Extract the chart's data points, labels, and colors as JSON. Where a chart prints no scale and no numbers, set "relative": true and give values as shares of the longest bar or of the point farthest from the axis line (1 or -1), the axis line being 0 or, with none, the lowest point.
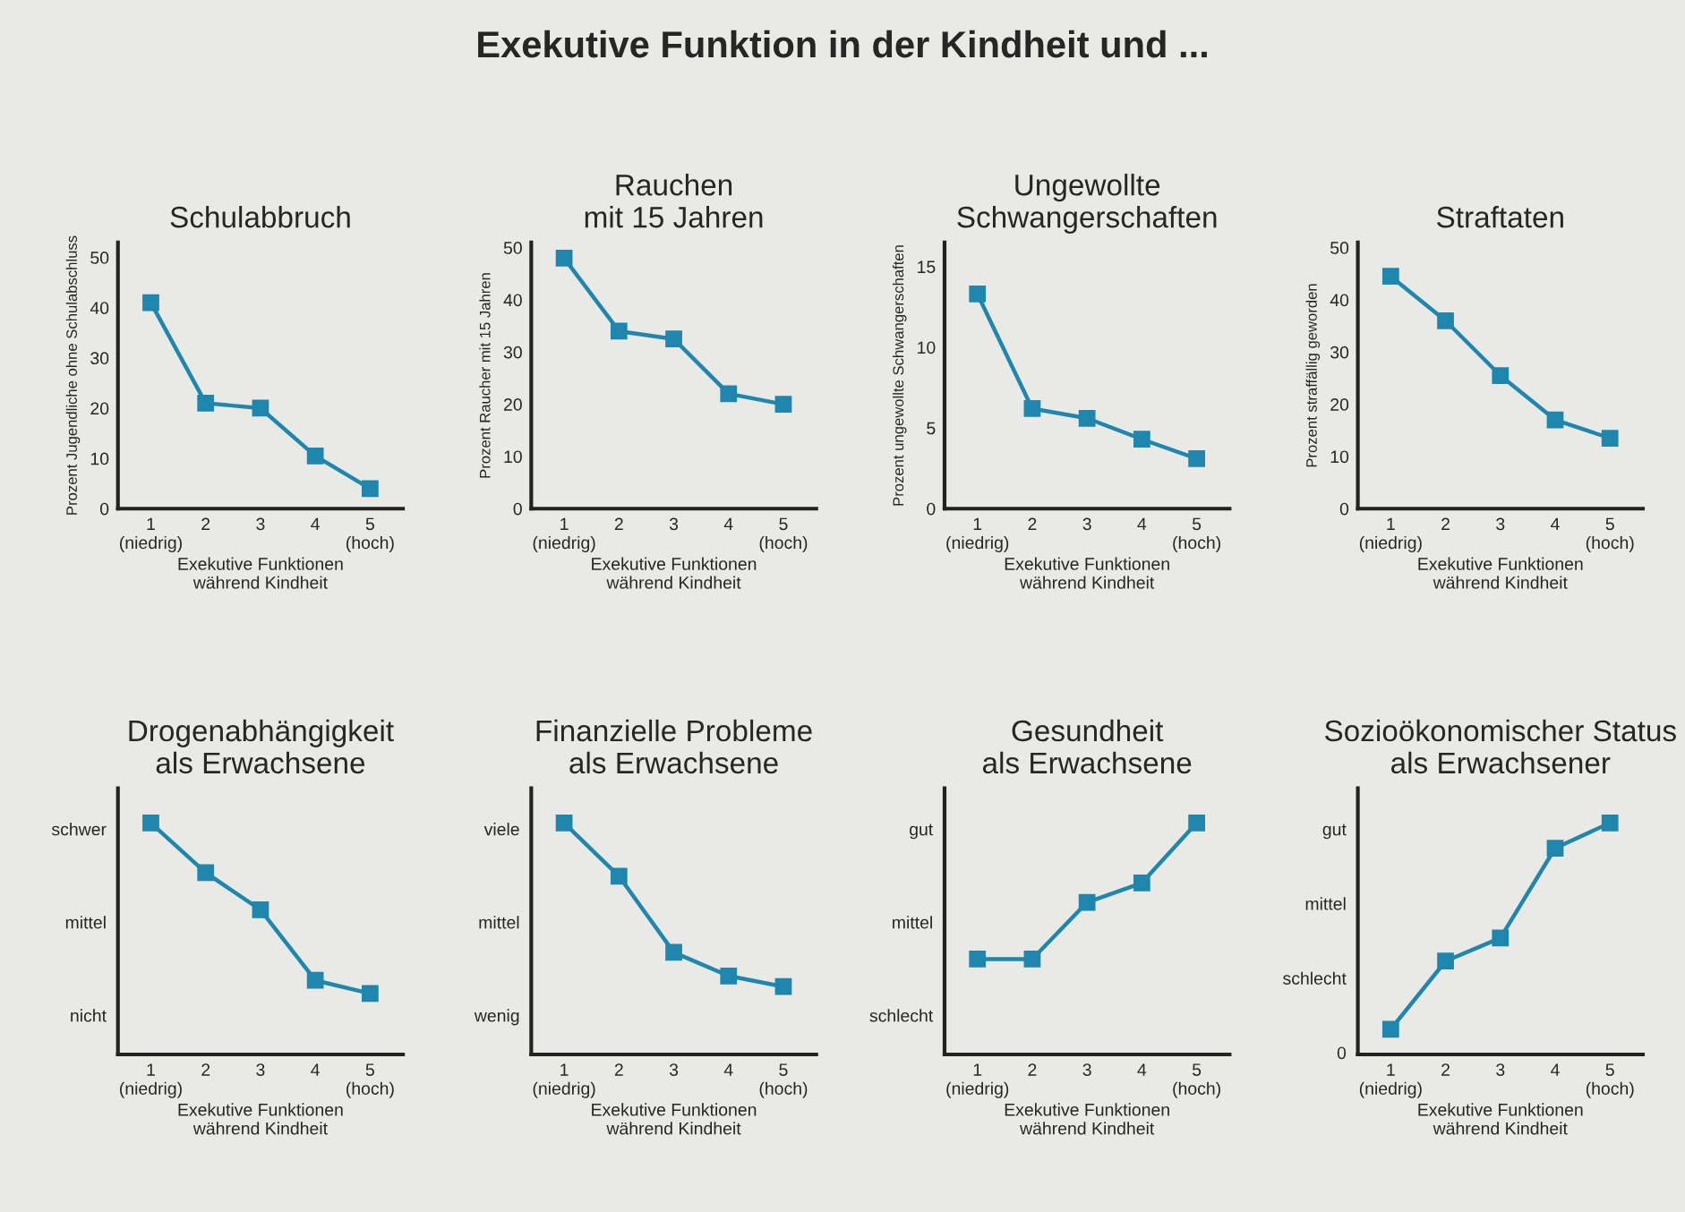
{
  "chart_data": [
    {
      "type": "line",
      "title": "Schulabbruch",
      "annotations": [
        "Exekutive Funktion in der Kindheit und ..."
      ],
      "xlabel": "Exekutive Funktionen\nwährend Kindheit",
      "ylabel": "Prozent Jugendliche ohne Schulabschluss",
      "categories": [
        "1\n(niedrig)",
        "2",
        "3",
        "4",
        "5\n(hoch)"
      ],
      "series": [
        {
          "color": "#1f86ad",
          "values": [
            41,
            21,
            20,
            10.5,
            4
          ]
        }
      ],
      "ylim": [
        0,
        53
      ],
      "yticks": [
        0,
        10,
        20,
        30,
        40,
        50
      ],
      "marker": "square",
      "line_style": "solid",
      "grid": false
    },
    {
      "type": "line",
      "title": "Rauchen\nmit 15 Jahren",
      "xlabel": "Exekutive Funktionen\nwährend Kindheit",
      "ylabel": "Prozent Raucher mit 15 Jahren",
      "categories": [
        "1\n(niedrig)",
        "2",
        "3",
        "4",
        "5\n(hoch)"
      ],
      "series": [
        {
          "color": "#1f86ad",
          "values": [
            48,
            34,
            32.5,
            22,
            20
          ]
        }
      ],
      "ylim": [
        0,
        51
      ],
      "yticks": [
        0,
        10,
        20,
        30,
        40,
        50
      ],
      "marker": "square",
      "line_style": "solid",
      "grid": false
    },
    {
      "type": "line",
      "title": "Ungewollte\nSchwangerschaften",
      "xlabel": "Exekutive Funktionen\nwährend Kindheit",
      "ylabel": "Prozent ungewollte Schwangerschaften",
      "categories": [
        "1\n(niedrig)",
        "2",
        "3",
        "4",
        "5\n(hoch)"
      ],
      "series": [
        {
          "color": "#1f86ad",
          "values": [
            13.3,
            6.2,
            5.6,
            4.3,
            3.1
          ]
        }
      ],
      "ylim": [
        0,
        16.5
      ],
      "yticks": [
        0,
        5,
        10,
        15
      ],
      "marker": "square",
      "line_style": "solid",
      "grid": false
    },
    {
      "type": "line",
      "title": "Straftaten",
      "xlabel": "Exekutive Funktionen\nwährend Kindheit",
      "ylabel": "Prozent straffällig geworden",
      "categories": [
        "1\n(niedrig)",
        "2",
        "3",
        "4",
        "5\n(hoch)"
      ],
      "series": [
        {
          "color": "#1f86ad",
          "values": [
            44.5,
            36,
            25.5,
            17,
            13.5
          ]
        }
      ],
      "ylim": [
        0,
        51
      ],
      "yticks": [
        0,
        10,
        20,
        30,
        40,
        50
      ],
      "marker": "square",
      "line_style": "solid",
      "grid": false
    },
    {
      "type": "line",
      "title": "Drogenabhängigkeit\nals Erwachsene",
      "xlabel": "Exekutive Funktionen\nwährend Kindheit",
      "categories": [
        "1\n(niedrig)",
        "2",
        "3",
        "4",
        "5\n(hoch)"
      ],
      "series": [
        {
          "color": "#1f86ad",
          "values": [
            1,
            0.785,
            0.625,
            0.32,
            0.263
          ]
        }
      ],
      "relative": true,
      "annotations": [
        "schwer",
        "mittel",
        "nicht"
      ],
      "marker": "square",
      "line_style": "solid",
      "grid": false
    },
    {
      "type": "line",
      "title": "Finanzielle Probleme\nals Erwachsene",
      "xlabel": "Exekutive Funktionen\nwährend Kindheit",
      "categories": [
        "1\n(niedrig)",
        "2",
        "3",
        "4",
        "5\n(hoch)"
      ],
      "series": [
        {
          "color": "#1f86ad",
          "values": [
            1,
            0.77,
            0.441,
            0.339,
            0.293
          ]
        }
      ],
      "relative": true,
      "annotations": [
        "viele",
        "mittel",
        "wenig"
      ],
      "marker": "square",
      "line_style": "solid",
      "grid": false
    },
    {
      "type": "line",
      "title": "Gesundheit\nals Erwachsene",
      "xlabel": "Exekutive Funktionen\nwährend Kindheit",
      "categories": [
        "1\n(niedrig)",
        "2",
        "3",
        "4",
        "5\n(hoch)"
      ],
      "series": [
        {
          "color": "#1f86ad",
          "values": [
            0.412,
            0.412,
            0.657,
            0.741,
            1
          ]
        }
      ],
      "relative": true,
      "annotations": [
        "gut",
        "mittel",
        "schlecht"
      ],
      "marker": "square",
      "line_style": "solid",
      "grid": false
    },
    {
      "type": "line",
      "title": "Sozioökonomischer Status\nals Erwachsener",
      "xlabel": "Exekutive Funktionen\nwährend Kindheit",
      "categories": [
        "1\n(niedrig)",
        "2",
        "3",
        "4",
        "5\n(hoch)"
      ],
      "series": [
        {
          "color": "#1f86ad",
          "values": [
            0.109,
            0.403,
            0.503,
            0.891,
            1
          ]
        }
      ],
      "relative": true,
      "annotations": [
        "gut",
        "mittel",
        "schlecht",
        "0"
      ],
      "marker": "square",
      "line_style": "solid",
      "grid": false
    }
  ]
}
